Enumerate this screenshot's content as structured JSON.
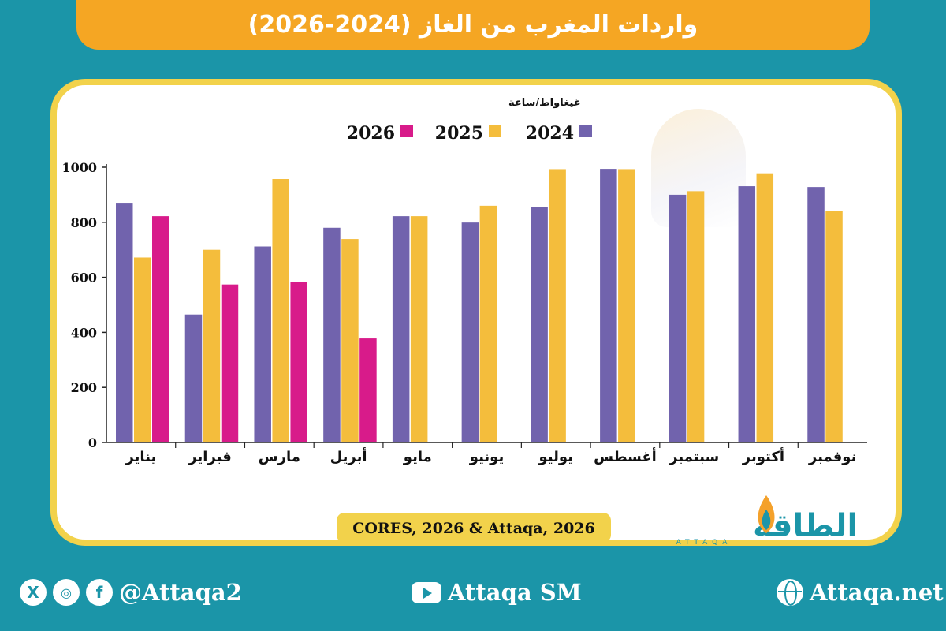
{
  "header": {
    "title": "واردات المغرب من الغاز (2024-2026)"
  },
  "chart_data": {
    "type": "bar",
    "unit": "غيغاواط/ساعة",
    "categories": [
      "يناير",
      "فبراير",
      "مارس",
      "أبريل",
      "مايو",
      "يونيو",
      "يوليو",
      "أغسطس",
      "سبتمبر",
      "أكتوبر",
      "نوفمبر"
    ],
    "series": [
      {
        "name": "2024",
        "color": "#7163ad",
        "values": [
          868,
          465,
          712,
          780,
          822,
          799,
          856,
          994,
          900,
          931,
          928
        ]
      },
      {
        "name": "2025",
        "color": "#f4bd3c",
        "values": [
          672,
          700,
          957,
          739,
          822,
          860,
          993,
          993,
          913,
          978,
          841
        ]
      },
      {
        "name": "2026",
        "color": "#d81b8a",
        "values": [
          822,
          574,
          584,
          378,
          null,
          null,
          null,
          null,
          null,
          null,
          null
        ]
      }
    ],
    "ylim": [
      0,
      1000
    ],
    "yticks": [
      0,
      200,
      400,
      600,
      800,
      1000
    ],
    "legend_position": "top",
    "grid": false,
    "source": "CORES, 2026 & Attaqa, 2026"
  },
  "logo": {
    "text": "الطاقة",
    "sub": "ATTAQA"
  },
  "footer": {
    "social_handle": "@Attaqa2",
    "youtube": "Attaqa SM",
    "website": "Attaqa.net",
    "icons": [
      "x-icon",
      "instagram-icon",
      "facebook-icon",
      "youtube-icon",
      "globe-icon"
    ]
  }
}
